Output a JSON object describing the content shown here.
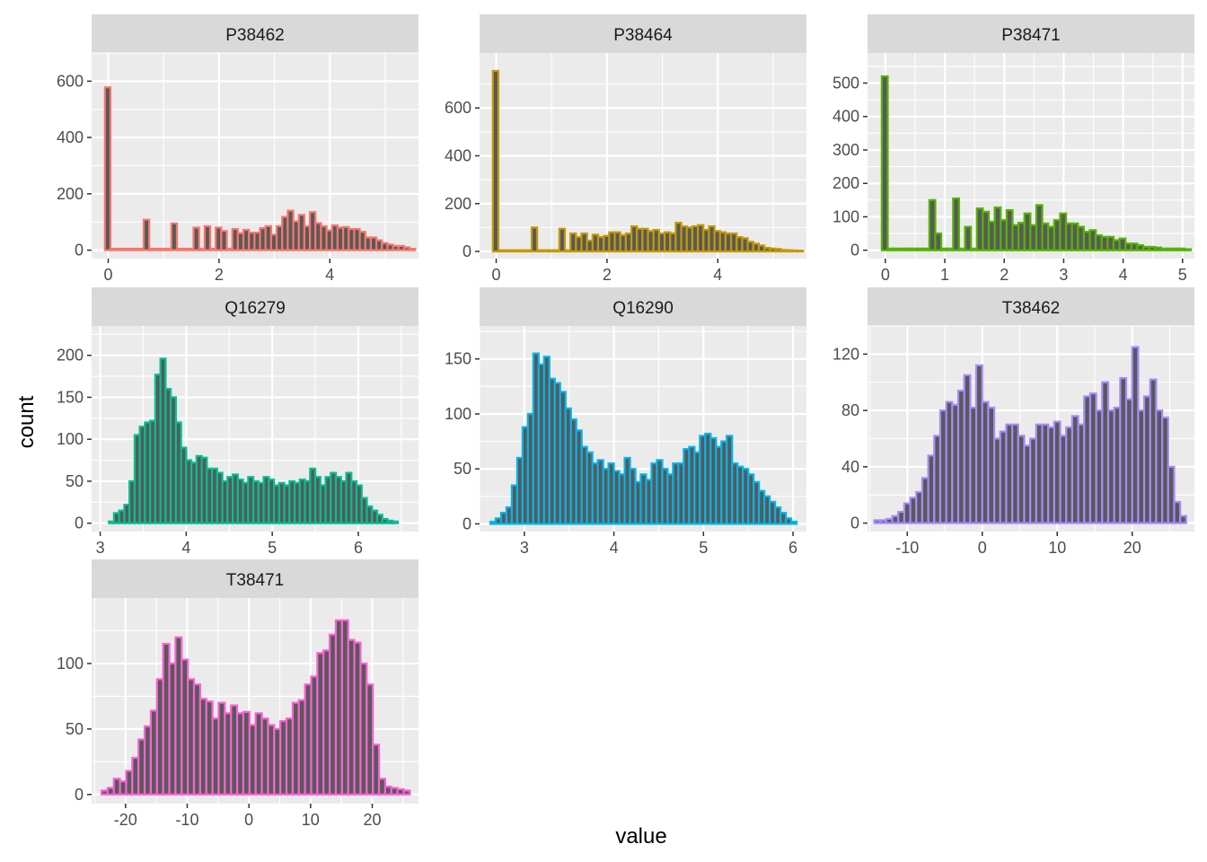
{
  "chart_data": {
    "type": "bar",
    "xlabel": "value",
    "ylabel": "count",
    "facet_style": "ggplot2-gray",
    "facets": [
      {
        "name": "P38462",
        "color": "#F8766D",
        "xlim": [
          -0.3,
          5.6
        ],
        "ylim": [
          -30,
          700
        ],
        "xticks": [
          0,
          2,
          4
        ],
        "yticks": [
          0,
          200,
          400,
          600
        ],
        "bins": {
          "start": -0.06,
          "width": 0.1,
          "counts": [
            578,
            5,
            5,
            5,
            5,
            5,
            5,
            108,
            5,
            5,
            5,
            5,
            95,
            5,
            5,
            5,
            80,
            5,
            85,
            5,
            80,
            68,
            5,
            75,
            60,
            72,
            62,
            62,
            78,
            85,
            55,
            85,
            118,
            140,
            102,
            125,
            85,
            135,
            96,
            85,
            70,
            88,
            80,
            82,
            75,
            75,
            65,
            45,
            45,
            35,
            25,
            20,
            15,
            15,
            10,
            5
          ]
        }
      },
      {
        "name": "P38464",
        "color": "#C49A00",
        "xlim": [
          -0.3,
          5.6
        ],
        "ylim": [
          -30,
          830
        ],
        "xticks": [
          0,
          2,
          4
        ],
        "yticks": [
          0,
          200,
          400,
          600
        ],
        "bins": {
          "start": -0.06,
          "width": 0.1,
          "counts": [
            755,
            5,
            5,
            5,
            5,
            5,
            5,
            100,
            5,
            5,
            5,
            5,
            95,
            5,
            75,
            60,
            75,
            45,
            70,
            60,
            65,
            80,
            80,
            68,
            75,
            105,
            95,
            95,
            85,
            90,
            75,
            80,
            75,
            120,
            105,
            100,
            105,
            110,
            90,
            105,
            85,
            80,
            75,
            75,
            60,
            55,
            40,
            32,
            25,
            15,
            12,
            10,
            6,
            5,
            4,
            3
          ]
        }
      },
      {
        "name": "P38471",
        "color": "#53B400",
        "xlim": [
          -0.3,
          5.2
        ],
        "ylim": [
          -25,
          590
        ],
        "xticks": [
          0,
          1,
          2,
          3,
          4,
          5
        ],
        "yticks": [
          0,
          100,
          200,
          300,
          400,
          500
        ],
        "bins": {
          "start": -0.06,
          "width": 0.1,
          "counts": [
            520,
            5,
            5,
            5,
            5,
            5,
            5,
            5,
            150,
            50,
            5,
            5,
            155,
            5,
            70,
            5,
            125,
            115,
            85,
            128,
            90,
            120,
            75,
            82,
            110,
            75,
            135,
            80,
            70,
            90,
            110,
            80,
            80,
            70,
            55,
            60,
            45,
            40,
            40,
            30,
            35,
            20,
            20,
            15,
            10,
            10,
            8,
            5,
            5,
            5,
            5,
            3
          ]
        }
      },
      {
        "name": "Q16279",
        "color": "#00C094",
        "xlim": [
          2.9,
          6.7
        ],
        "ylim": [
          -10,
          235
        ],
        "xticks": [
          3,
          4,
          5,
          6
        ],
        "yticks": [
          0,
          50,
          100,
          150,
          200
        ],
        "bins": {
          "start": 3.1,
          "width": 0.06,
          "counts": [
            2,
            12,
            15,
            22,
            50,
            105,
            115,
            120,
            122,
            177,
            196,
            160,
            150,
            120,
            90,
            75,
            72,
            80,
            78,
            65,
            65,
            60,
            50,
            55,
            58,
            52,
            48,
            55,
            50,
            48,
            55,
            52,
            45,
            48,
            45,
            50,
            48,
            52,
            50,
            65,
            55,
            45,
            55,
            60,
            55,
            50,
            60,
            50,
            45,
            30,
            20,
            15,
            10,
            5,
            3,
            2
          ]
        }
      },
      {
        "name": "Q16290",
        "color": "#00B6EB",
        "xlim": [
          2.5,
          6.15
        ],
        "ylim": [
          -7,
          180
        ],
        "xticks": [
          3,
          4,
          5,
          6
        ],
        "yticks": [
          0,
          50,
          100,
          150
        ],
        "bins": {
          "start": 2.62,
          "width": 0.06,
          "counts": [
            2,
            5,
            10,
            15,
            35,
            60,
            88,
            100,
            155,
            145,
            152,
            132,
            128,
            120,
            105,
            95,
            85,
            70,
            65,
            55,
            58,
            50,
            55,
            48,
            45,
            60,
            50,
            38,
            45,
            40,
            55,
            58,
            50,
            45,
            55,
            55,
            68,
            70,
            65,
            80,
            82,
            78,
            70,
            75,
            80,
            55,
            52,
            50,
            45,
            38,
            30,
            25,
            20,
            15,
            10,
            5,
            2
          ]
        }
      },
      {
        "name": "T38462",
        "color": "#A58AFF",
        "xlim": [
          -15.3,
          28.3
        ],
        "ylim": [
          -6,
          140
        ],
        "xticks": [
          -10,
          0,
          10,
          20
        ],
        "yticks": [
          0,
          40,
          80,
          120
        ],
        "bins": {
          "start": -14.4,
          "width": 0.8,
          "counts": [
            2,
            2,
            3,
            5,
            8,
            14,
            18,
            22,
            32,
            48,
            62,
            80,
            86,
            84,
            94,
            105,
            82,
            112,
            86,
            82,
            60,
            65,
            70,
            70,
            62,
            55,
            60,
            70,
            70,
            68,
            72,
            62,
            68,
            76,
            70,
            90,
            92,
            80,
            100,
            80,
            82,
            103,
            88,
            125,
            80,
            90,
            102,
            80,
            75,
            40,
            15,
            5
          ]
        }
      },
      {
        "name": "T38471",
        "color": "#FB61D7",
        "xlim": [
          -25.5,
          27.5
        ],
        "ylim": [
          -7,
          150
        ],
        "xticks": [
          -20,
          -10,
          0,
          10,
          20
        ],
        "yticks": [
          0,
          50,
          100
        ],
        "bins": {
          "start": -23.9,
          "width": 1.0,
          "counts": [
            3,
            5,
            12,
            10,
            18,
            28,
            42,
            52,
            64,
            88,
            115,
            100,
            120,
            103,
            88,
            84,
            73,
            71,
            58,
            70,
            62,
            68,
            62,
            63,
            53,
            62,
            58,
            53,
            50,
            56,
            58,
            70,
            72,
            84,
            90,
            108,
            110,
            122,
            133,
            133,
            118,
            116,
            100,
            84,
            38,
            12,
            6,
            5,
            4,
            3
          ]
        }
      }
    ]
  }
}
